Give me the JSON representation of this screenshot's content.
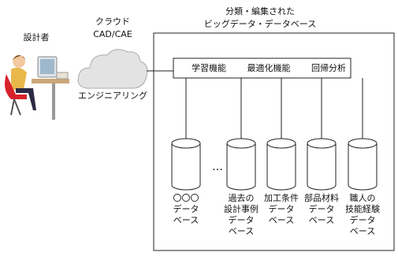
{
  "designer": {
    "label": "設計者"
  },
  "cloud": {
    "title_lines": [
      "クラウド",
      "CAD/CAE"
    ],
    "label": "エンジニアリング"
  },
  "database_box": {
    "title_lines": [
      "分類・編集された",
      "ビッグデータ・データベース"
    ],
    "functions": [
      "学習機能",
      "最適化機能",
      "回帰分析"
    ],
    "ellipsis": "…",
    "databases": [
      {
        "label_lines": [
          "〇〇〇",
          "データ",
          "ベース"
        ]
      },
      {
        "label_lines": [
          "過去の",
          "設計事例",
          "データ",
          "ベース"
        ]
      },
      {
        "label_lines": [
          "加工条件",
          "データ",
          "ベース"
        ]
      },
      {
        "label_lines": [
          "部品材料",
          "データ",
          "ベース"
        ]
      },
      {
        "label_lines": [
          "職人の",
          "技能経験",
          "データ",
          "ベース"
        ]
      }
    ]
  }
}
